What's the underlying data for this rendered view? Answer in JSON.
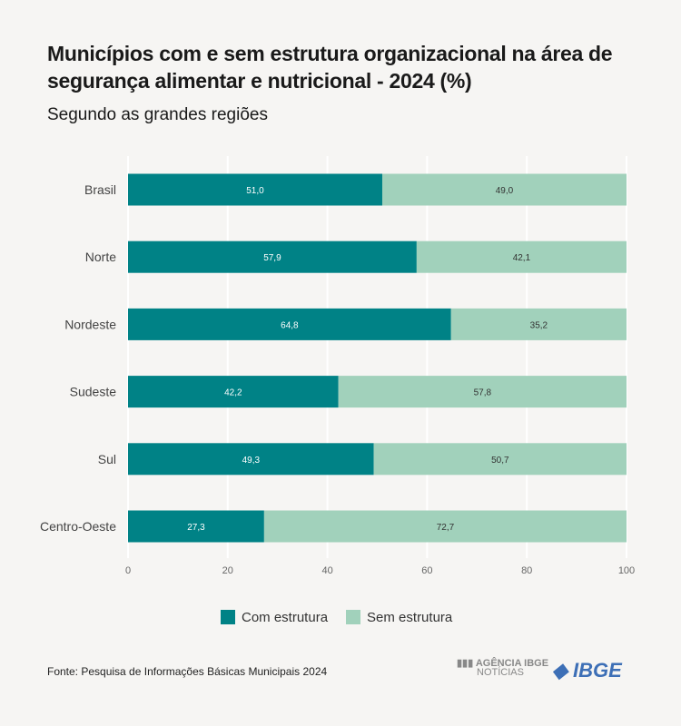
{
  "title": "Municípios com e sem estrutura organizacional na área de segurança alimentar e nutricional - 2024  (%)",
  "subtitle": "Segundo as grandes regiões",
  "source": "Fonte: Pesquisa de Informações Básicas Municipais 2024",
  "logos": {
    "agencia": "AGÊNCIA IBGE",
    "agencia_sub": "NOTÍCIAS",
    "ibge": "IBGE"
  },
  "chart_data": {
    "type": "bar",
    "orientation": "horizontal",
    "stacked": true,
    "categories": [
      "Brasil",
      "Norte",
      "Nordeste",
      "Sudeste",
      "Sul",
      "Centro-Oeste"
    ],
    "series": [
      {
        "name": "Com estrutura",
        "color": "#008286",
        "values": [
          51.0,
          57.9,
          64.8,
          42.2,
          49.3,
          27.3
        ],
        "labels": [
          "51,0",
          "57,9",
          "64,8",
          "42,2",
          "49,3",
          "27,3"
        ]
      },
      {
        "name": "Sem estrutura",
        "color": "#a1d1bb",
        "values": [
          49.0,
          42.1,
          35.2,
          57.8,
          50.7,
          72.7
        ],
        "labels": [
          "49,0",
          "42,1",
          "35,2",
          "57,8",
          "50,7",
          "72,7"
        ]
      }
    ],
    "xlim": [
      0,
      100
    ],
    "xticks": [
      "0",
      "20",
      "40",
      "60",
      "80",
      "100"
    ],
    "grid": true,
    "legend": "bottom"
  }
}
